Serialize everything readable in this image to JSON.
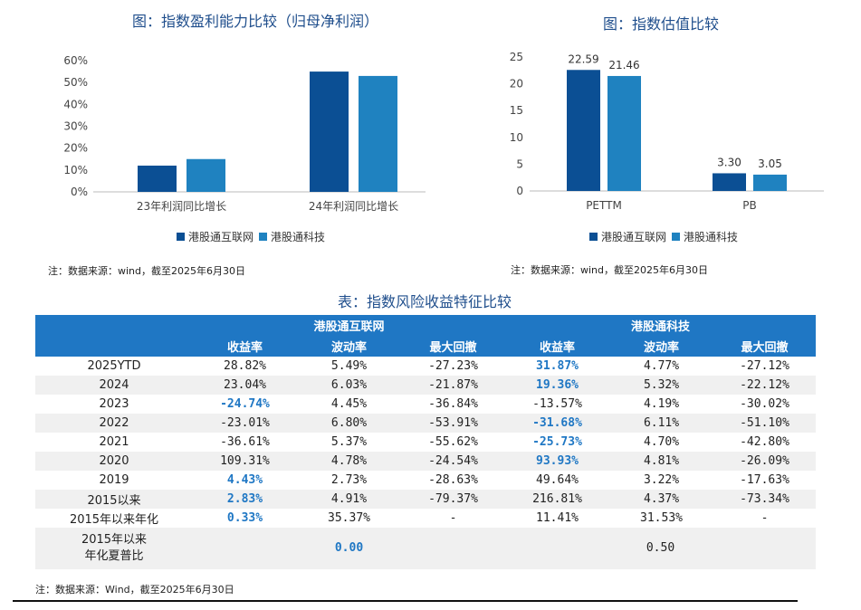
{
  "chart_data": [
    {
      "type": "bar",
      "title": "图：指数盈利能力比较（归母净利润）",
      "categories": [
        "23年利润同比增长",
        "24年利润同比增长"
      ],
      "series": [
        {
          "name": "港股通互联网",
          "values": [
            12,
            55
          ],
          "color": "#0b4f94"
        },
        {
          "name": "港股通科技",
          "values": [
            15,
            53
          ],
          "color": "#1f82c0"
        }
      ],
      "yticks": [
        "0%",
        "10%",
        "20%",
        "30%",
        "40%",
        "50%",
        "60%"
      ],
      "ylim": [
        0,
        60
      ],
      "grid": false,
      "legend": "bottom",
      "note": "注：数据来源：wind，截至2025年6月30日"
    },
    {
      "type": "bar",
      "title": "图：指数估值比较",
      "categories": [
        "PETTM",
        "PB"
      ],
      "series": [
        {
          "name": "港股通互联网",
          "values": [
            22.59,
            3.3
          ],
          "labels": [
            "22.59",
            "3.30"
          ],
          "color": "#0b4f94"
        },
        {
          "name": "港股通科技",
          "values": [
            21.46,
            3.05
          ],
          "labels": [
            "21.46",
            "3.05"
          ],
          "color": "#1f82c0"
        }
      ],
      "yticks": [
        "0",
        "5",
        "10",
        "15",
        "20",
        "25"
      ],
      "ylim": [
        0,
        25
      ],
      "grid": false,
      "legend": "bottom",
      "note": "注：数据来源：wind，截至2025年6月30日"
    },
    {
      "type": "table",
      "title": "表：指数风险收益特征比较",
      "groups": [
        "港股通互联网",
        "港股通科技"
      ],
      "columns": [
        "收益率",
        "波动率",
        "最大回撤",
        "收益率",
        "波动率",
        "最大回撤"
      ],
      "rows": [
        {
          "label": "2025YTD",
          "cells": [
            "28.82%",
            "5.49%",
            "-27.23%",
            "31.87%",
            "4.77%",
            "-27.12%"
          ],
          "hl": [
            3
          ]
        },
        {
          "label": "2024",
          "cells": [
            "23.04%",
            "6.03%",
            "-21.87%",
            "19.36%",
            "5.32%",
            "-22.12%"
          ],
          "hl": [
            3
          ]
        },
        {
          "label": "2023",
          "cells": [
            "-24.74%",
            "4.45%",
            "-36.84%",
            "-13.57%",
            "4.19%",
            "-30.02%"
          ],
          "hl": [
            0
          ]
        },
        {
          "label": "2022",
          "cells": [
            "-23.01%",
            "6.80%",
            "-53.91%",
            "-31.68%",
            "6.11%",
            "-51.10%"
          ],
          "hl": [
            3
          ]
        },
        {
          "label": "2021",
          "cells": [
            "-36.61%",
            "5.37%",
            "-55.62%",
            "-25.73%",
            "4.70%",
            "-42.80%"
          ],
          "hl": [
            3
          ]
        },
        {
          "label": "2020",
          "cells": [
            "109.31%",
            "4.78%",
            "-24.54%",
            "93.93%",
            "4.81%",
            "-26.09%"
          ],
          "hl": [
            3
          ]
        },
        {
          "label": "2019",
          "cells": [
            "4.43%",
            "2.73%",
            "-28.63%",
            "49.64%",
            "3.22%",
            "-17.63%"
          ],
          "hl": [
            0
          ]
        },
        {
          "label": "2015以来",
          "cells": [
            "2.83%",
            "4.91%",
            "-79.37%",
            "216.81%",
            "4.37%",
            "-73.34%"
          ],
          "hl": [
            0
          ]
        },
        {
          "label": "2015年以来年化",
          "cells": [
            "0.33%",
            "35.37%",
            "-",
            "11.41%",
            "31.53%",
            "-"
          ],
          "hl": [
            0
          ]
        }
      ],
      "sharpe": {
        "label": "2015年以来\n年化夏普比",
        "values": [
          "0.00",
          "0.50"
        ],
        "hl": [
          0
        ]
      },
      "note": "注：数据来源：Wind，截至2025年6月30日"
    }
  ]
}
